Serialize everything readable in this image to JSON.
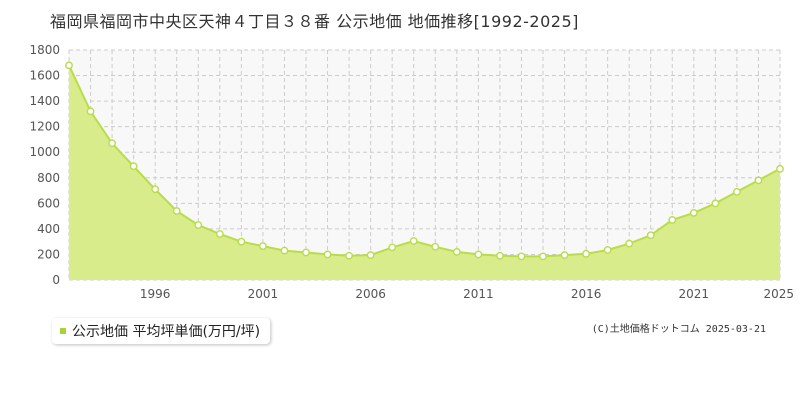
{
  "title": "福岡県福岡市中央区天神４丁目３８番 公示地価 地価推移[1992-2025]",
  "legend_label": "公示地価 平均坪単価(万円/坪)",
  "copyright": "(C)土地価格ドットコム 2025-03-21",
  "colors": {
    "fill": "#d8ec8c",
    "line": "#b9dc4a",
    "marker_stroke": "#b9dc4a",
    "marker_fill": "#ffffff",
    "plot_bg": "#f8f8f8",
    "grid": "#cccccc",
    "legend_swatch": "#a8d438"
  },
  "chart_data": {
    "type": "area",
    "title": "福岡県福岡市中央区天神４丁目３８番 公示地価 地価推移[1992-2025]",
    "xlabel": "",
    "ylabel": "",
    "ylim": [
      0,
      1800
    ],
    "xlim": [
      1992,
      2025
    ],
    "yticks": [
      0,
      200,
      400,
      600,
      800,
      1000,
      1200,
      1400,
      1600,
      1800
    ],
    "xticks": [
      1996,
      2001,
      2006,
      2011,
      2016,
      2021,
      2025
    ],
    "grid": true,
    "legend_position": "bottom-left",
    "series": [
      {
        "name": "公示地価 平均坪単価(万円/坪)",
        "x": [
          1992,
          1993,
          1994,
          1995,
          1996,
          1997,
          1998,
          1999,
          2000,
          2001,
          2002,
          2003,
          2004,
          2005,
          2006,
          2007,
          2008,
          2009,
          2010,
          2011,
          2012,
          2013,
          2014,
          2015,
          2016,
          2017,
          2018,
          2019,
          2020,
          2021,
          2022,
          2023,
          2024,
          2025
        ],
        "values": [
          1680,
          1320,
          1070,
          890,
          710,
          540,
          430,
          360,
          300,
          265,
          230,
          215,
          200,
          190,
          195,
          255,
          305,
          260,
          220,
          200,
          190,
          185,
          185,
          195,
          205,
          235,
          285,
          350,
          470,
          525,
          600,
          690,
          780,
          870
        ]
      }
    ]
  }
}
